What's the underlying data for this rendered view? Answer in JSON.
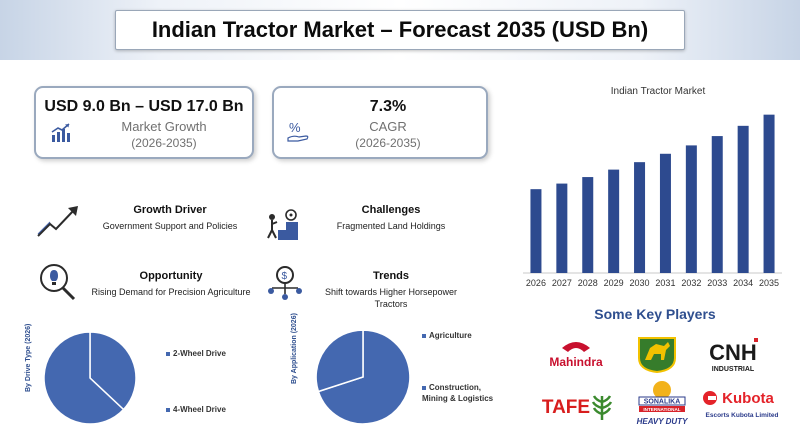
{
  "header": {
    "title": "Indian Tractor Market – Forecast 2035 (USD Bn)"
  },
  "cards": [
    {
      "value": "USD 9.0 Bn – USD 17.0 Bn",
      "label": "Market Growth",
      "period": "(2026-2035)",
      "icon": "growth-chart-icon"
    },
    {
      "value": "7.3%",
      "label": "CAGR",
      "period": "(2026-2035)",
      "icon": "percent-hand-icon"
    }
  ],
  "features": {
    "growth_driver": {
      "title": "Growth Driver",
      "desc": "Government Support and Policies",
      "icon": "trend-up-icon"
    },
    "challenges": {
      "title": "Challenges",
      "desc": "Fragmented Land Holdings",
      "icon": "climbing-steps-icon"
    },
    "opportunity": {
      "title": "Opportunity",
      "desc": "Rising Demand for Precision Agriculture",
      "icon": "lightbulb-magnifier-icon"
    },
    "trends": {
      "title": "Trends",
      "desc": "Shift towards Higher Horsepower Tractors",
      "icon": "network-hub-icon"
    }
  },
  "chart_data": [
    {
      "type": "bar",
      "title": "Indian Tractor Market",
      "categories": [
        "2026",
        "2027",
        "2028",
        "2029",
        "2030",
        "2031",
        "2032",
        "2033",
        "2034",
        "2035"
      ],
      "values": [
        9.0,
        9.6,
        10.3,
        11.1,
        11.9,
        12.8,
        13.7,
        14.7,
        15.8,
        17.0
      ],
      "ylim": [
        0,
        17.5
      ],
      "color": "#2d4a8f",
      "grid": false
    },
    {
      "type": "pie",
      "caption": "By Drive Type (2026)",
      "labels": [
        "2-Wheel Drive",
        "4-Wheel Drive"
      ],
      "values": [
        37,
        63
      ],
      "color": "#4468b0"
    },
    {
      "type": "pie",
      "caption": "By Application (2026)",
      "labels": [
        "Agriculture",
        "Construction, Mining & Logistics"
      ],
      "values": [
        70,
        30
      ],
      "color": "#4468b0"
    }
  ],
  "key_players": {
    "title": "Some Key Players",
    "logos": [
      {
        "text": "Mahindra",
        "color": "#c8102e"
      },
      {
        "text": "John Deere",
        "color": "#367c2b"
      },
      {
        "text": "CNH",
        "sub": "INDUSTRIAL",
        "color": "#1a1a1a"
      },
      {
        "text": "TAFE",
        "color": "#d81e1e"
      },
      {
        "text": "SONALIKA",
        "sub": "INTERNATIONAL",
        "tag": "HEAVY DUTY",
        "color": "#2a3a8a"
      },
      {
        "text": "Kubota",
        "sub": "Escorts Kubota Limited",
        "color": "#e4232a"
      }
    ]
  }
}
